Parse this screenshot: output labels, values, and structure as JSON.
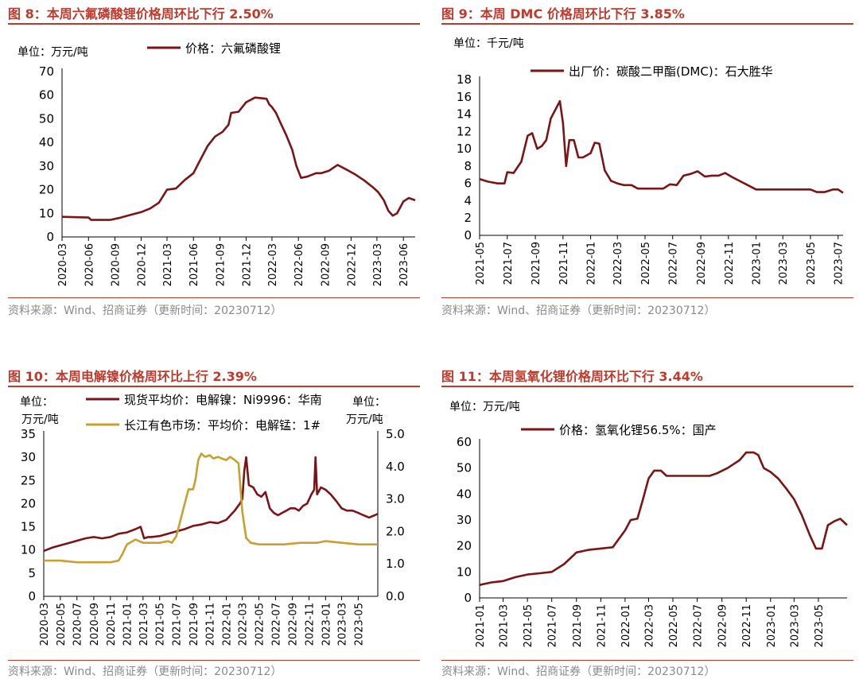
{
  "colors": {
    "title": "#c0392b",
    "series_dark": "#7b1416",
    "series_gold": "#c8a030",
    "source": "#8a8a8a"
  },
  "panels": [
    {
      "title": "图 8：本周六氟磷酸锂价格周环比下行 2.50%",
      "source": "资料来源：Wind、招商证券（更新时间：20230712）"
    },
    {
      "title": "图 9：本周 DMC 价格周环比下行 3.85%",
      "source": "资料来源：Wind、招商证券（更新时间：20230712）"
    },
    {
      "title": "图 10：本周电解镍价格周环比上行 2.39%",
      "source": "资料来源：Wind、招商证券（更新时间：20230712）"
    },
    {
      "title": "图 11：本周氢氧化锂价格周环比下行 3.44%",
      "source": "资料来源：Wind、招商证券（更新时间：20230712）"
    }
  ],
  "chart_data": [
    {
      "type": "line",
      "unit_label": "单位：万元/吨",
      "ylim": [
        0,
        70
      ],
      "y_ticks": [
        0,
        10,
        20,
        30,
        40,
        50,
        60,
        70
      ],
      "x_ticks": [
        "2020-03",
        "2020-06",
        "2020-09",
        "2020-12",
        "2021-03",
        "2021-06",
        "2021-09",
        "2021-12",
        "2022-03",
        "2022-06",
        "2022-09",
        "2022-12",
        "2023-03",
        "2023-06"
      ],
      "x_range": [
        "2020-03-01",
        "2023-07-12"
      ],
      "legend_position": "top",
      "series": [
        {
          "name": "价格：六氟磷酸锂",
          "color": "#7b1416",
          "x": [
            "2020-03-01",
            "2020-06-01",
            "2020-06-10",
            "2020-08-15",
            "2020-09-15",
            "2020-10-15",
            "2020-12-01",
            "2021-01-01",
            "2021-02-01",
            "2021-03-01",
            "2021-04-01",
            "2021-05-01",
            "2021-06-01",
            "2021-06-20",
            "2021-07-20",
            "2021-08-15",
            "2021-09-10",
            "2021-10-01",
            "2021-10-10",
            "2021-11-05",
            "2021-12-01",
            "2022-01-01",
            "2022-02-10",
            "2022-02-20",
            "2022-03-01",
            "2022-03-15",
            "2022-04-01",
            "2022-04-20",
            "2022-05-10",
            "2022-05-25",
            "2022-06-10",
            "2022-07-01",
            "2022-08-01",
            "2022-08-20",
            "2022-09-15",
            "2022-10-15",
            "2022-11-15",
            "2022-12-15",
            "2023-01-15",
            "2023-02-15",
            "2023-03-05",
            "2023-03-25",
            "2023-04-10",
            "2023-04-25",
            "2023-05-10",
            "2023-06-01",
            "2023-06-20",
            "2023-07-12"
          ],
          "values": [
            8.5,
            8.2,
            7.2,
            7.2,
            8.0,
            9.0,
            10.5,
            12.0,
            14.5,
            20.0,
            20.5,
            24.0,
            27.0,
            31.5,
            38.5,
            42.5,
            44.5,
            47.5,
            52.5,
            53.0,
            57.0,
            59.0,
            58.5,
            56.0,
            55.0,
            52.5,
            48.0,
            43.0,
            37.0,
            30.0,
            25.0,
            25.5,
            27.0,
            27.0,
            28.0,
            30.5,
            28.5,
            26.5,
            24.0,
            21.0,
            19.0,
            15.5,
            11.0,
            9.0,
            10.0,
            15.0,
            16.5,
            15.5
          ]
        }
      ]
    },
    {
      "type": "line",
      "unit_label": "单位：千元/吨",
      "ylim": [
        0,
        18
      ],
      "y_ticks": [
        0,
        2,
        4,
        6,
        8,
        10,
        12,
        14,
        16,
        18
      ],
      "x_ticks": [
        "2021-05",
        "2021-07",
        "2021-09",
        "2021-11",
        "2022-01",
        "2022-03",
        "2022-05",
        "2022-07",
        "2022-09",
        "2022-11",
        "2023-01",
        "2023-03",
        "2023-05",
        "2023-07"
      ],
      "x_range": [
        "2021-05-01",
        "2023-07-12"
      ],
      "legend_position": "top",
      "series": [
        {
          "name": "出厂价：碳酸二甲酯(DMC)：石大胜华",
          "color": "#7b1416",
          "x": [
            "2021-05-01",
            "2021-05-20",
            "2021-06-10",
            "2021-06-25",
            "2021-07-01",
            "2021-07-15",
            "2021-08-01",
            "2021-08-15",
            "2021-08-25",
            "2021-09-05",
            "2021-09-15",
            "2021-09-25",
            "2021-10-05",
            "2021-10-15",
            "2021-10-25",
            "2021-11-01",
            "2021-11-08",
            "2021-11-15",
            "2021-11-25",
            "2021-12-05",
            "2021-12-15",
            "2022-01-01",
            "2022-01-10",
            "2022-01-20",
            "2022-02-01",
            "2022-02-15",
            "2022-03-01",
            "2022-03-15",
            "2022-04-01",
            "2022-04-15",
            "2022-05-01",
            "2022-05-20",
            "2022-06-10",
            "2022-06-25",
            "2022-07-10",
            "2022-07-25",
            "2022-08-10",
            "2022-08-25",
            "2022-09-10",
            "2022-09-25",
            "2022-10-10",
            "2022-10-25",
            "2022-11-10",
            "2022-11-25",
            "2022-12-10",
            "2023-01-01",
            "2023-02-01",
            "2023-03-01",
            "2023-04-01",
            "2023-05-01",
            "2023-05-15",
            "2023-06-01",
            "2023-06-20",
            "2023-07-01",
            "2023-07-12"
          ],
          "values": [
            6.5,
            6.2,
            6.0,
            6.0,
            7.3,
            7.2,
            8.5,
            11.5,
            11.8,
            10.0,
            10.3,
            11.0,
            13.5,
            14.5,
            15.5,
            13.0,
            8.0,
            11.0,
            11.0,
            9.0,
            9.0,
            9.5,
            10.7,
            10.6,
            7.5,
            6.3,
            6.0,
            5.8,
            5.8,
            5.4,
            5.4,
            5.4,
            5.4,
            5.9,
            5.8,
            6.9,
            7.1,
            7.4,
            6.8,
            6.9,
            6.9,
            7.2,
            6.7,
            6.3,
            5.9,
            5.3,
            5.3,
            5.3,
            5.3,
            5.3,
            5.0,
            5.0,
            5.3,
            5.3,
            4.9
          ]
        }
      ]
    },
    {
      "type": "line",
      "unit_label_left": "单位：万元/吨",
      "unit_label_right": "单位：万元/吨",
      "ylim_left": [
        0,
        35
      ],
      "y_ticks_left": [
        0,
        5,
        10,
        15,
        20,
        25,
        30,
        35
      ],
      "ylim_right": [
        0,
        5
      ],
      "y_ticks_right": [
        "0.0",
        "1.0",
        "2.0",
        "3.0",
        "4.0",
        "5.0"
      ],
      "x_ticks": [
        "2020-03",
        "2020-05",
        "2020-07",
        "2020-09",
        "2020-11",
        "2021-01",
        "2021-03",
        "2021-05",
        "2021-07",
        "2021-09",
        "2021-11",
        "2022-01",
        "2022-03",
        "2022-05",
        "2022-07",
        "2022-09",
        "2022-11",
        "2023-01",
        "2023-03",
        "2023-05"
      ],
      "x_range": [
        "2020-03-01",
        "2023-07-12"
      ],
      "legend_position": "top",
      "series": [
        {
          "name": "现货平均价：电解镍：Ni9996：华南",
          "axis": "left",
          "color": "#7b1416",
          "x": [
            "2020-03-01",
            "2020-04-01",
            "2020-05-01",
            "2020-06-01",
            "2020-07-01",
            "2020-08-01",
            "2020-09-01",
            "2020-10-01",
            "2020-11-01",
            "2020-12-01",
            "2021-01-01",
            "2021-02-01",
            "2021-02-20",
            "2021-03-05",
            "2021-03-20",
            "2021-04-01",
            "2021-05-01",
            "2021-06-01",
            "2021-07-01",
            "2021-08-01",
            "2021-09-01",
            "2021-10-01",
            "2021-11-01",
            "2021-12-01",
            "2022-01-01",
            "2022-02-01",
            "2022-02-20",
            "2022-03-01",
            "2022-03-08",
            "2022-03-15",
            "2022-03-25",
            "2022-04-10",
            "2022-04-25",
            "2022-05-10",
            "2022-05-25",
            "2022-06-10",
            "2022-06-25",
            "2022-07-10",
            "2022-07-25",
            "2022-08-10",
            "2022-08-25",
            "2022-09-10",
            "2022-09-25",
            "2022-10-10",
            "2022-10-25",
            "2022-11-10",
            "2022-11-20",
            "2022-11-25",
            "2022-12-01",
            "2022-12-15",
            "2023-01-01",
            "2023-01-20",
            "2023-02-10",
            "2023-03-01",
            "2023-03-20",
            "2023-04-10",
            "2023-05-01",
            "2023-05-20",
            "2023-06-10",
            "2023-07-01",
            "2023-07-12"
          ],
          "values": [
            9.8,
            10.5,
            11.0,
            11.5,
            12.0,
            12.5,
            12.8,
            12.5,
            12.8,
            13.5,
            13.8,
            14.5,
            15.0,
            12.5,
            12.8,
            12.8,
            13.0,
            13.5,
            14.0,
            14.5,
            15.2,
            15.5,
            16.0,
            15.8,
            16.5,
            18.5,
            20.0,
            21.0,
            27.0,
            30.0,
            24.0,
            23.5,
            22.0,
            21.5,
            22.5,
            19.0,
            18.0,
            17.5,
            18.0,
            18.5,
            19.0,
            19.0,
            18.5,
            19.5,
            20.0,
            22.0,
            23.0,
            30.0,
            22.0,
            23.5,
            23.0,
            22.0,
            20.5,
            19.0,
            18.5,
            18.5,
            18.0,
            17.5,
            17.0,
            17.5,
            17.8
          ]
        },
        {
          "name": "长江有色市场：平均价：电解锰：1#",
          "axis": "right",
          "color": "#c8a030",
          "x": [
            "2020-03-01",
            "2020-05-01",
            "2020-07-01",
            "2020-09-01",
            "2020-11-01",
            "2020-12-01",
            "2020-12-15",
            "2021-01-01",
            "2021-02-01",
            "2021-03-01",
            "2021-04-01",
            "2021-05-01",
            "2021-06-01",
            "2021-06-15",
            "2021-07-01",
            "2021-07-15",
            "2021-08-01",
            "2021-08-15",
            "2021-09-01",
            "2021-09-10",
            "2021-09-20",
            "2021-10-01",
            "2021-10-15",
            "2021-11-01",
            "2021-11-15",
            "2021-12-01",
            "2021-12-15",
            "2022-01-01",
            "2022-01-15",
            "2022-02-01",
            "2022-02-15",
            "2022-03-01",
            "2022-03-15",
            "2022-04-01",
            "2022-05-01",
            "2022-06-01",
            "2022-08-01",
            "2022-10-01",
            "2022-12-01",
            "2023-01-01",
            "2023-03-01",
            "2023-05-01",
            "2023-07-12"
          ],
          "values": [
            1.1,
            1.1,
            1.05,
            1.05,
            1.05,
            1.1,
            1.3,
            1.6,
            1.75,
            1.65,
            1.65,
            1.65,
            1.7,
            1.65,
            1.85,
            2.3,
            2.85,
            3.3,
            3.3,
            3.6,
            4.2,
            4.4,
            4.3,
            4.35,
            4.25,
            4.3,
            4.25,
            4.2,
            4.3,
            4.2,
            4.1,
            2.6,
            1.8,
            1.65,
            1.6,
            1.6,
            1.6,
            1.65,
            1.65,
            1.7,
            1.65,
            1.6,
            1.6
          ]
        }
      ]
    },
    {
      "type": "line",
      "unit_label": "单位：万元/吨",
      "ylim": [
        0,
        60
      ],
      "y_ticks": [
        0,
        10,
        20,
        30,
        40,
        50,
        60
      ],
      "x_ticks": [
        "2021-01",
        "2021-03",
        "2021-05",
        "2021-07",
        "2021-09",
        "2021-11",
        "2022-01",
        "2022-03",
        "2022-05",
        "2022-07",
        "2022-09",
        "2022-11",
        "2023-01",
        "2023-03",
        "2023-05"
      ],
      "x_range": [
        "2021-01-01",
        "2023-07-12"
      ],
      "legend_position": "top",
      "series": [
        {
          "name": "价格：氢氧化锂56.5%：国产",
          "color": "#7b1416",
          "x": [
            "2021-01-01",
            "2021-02-01",
            "2021-03-01",
            "2021-04-01",
            "2021-05-01",
            "2021-06-01",
            "2021-07-01",
            "2021-08-01",
            "2021-09-01",
            "2021-10-01",
            "2021-11-01",
            "2021-12-01",
            "2022-01-01",
            "2022-01-15",
            "2022-02-01",
            "2022-02-15",
            "2022-03-01",
            "2022-03-15",
            "2022-04-01",
            "2022-04-15",
            "2022-05-01",
            "2022-06-01",
            "2022-07-01",
            "2022-08-01",
            "2022-08-20",
            "2022-09-15",
            "2022-10-15",
            "2022-11-01",
            "2022-11-20",
            "2022-12-01",
            "2022-12-15",
            "2023-01-01",
            "2023-01-20",
            "2023-02-10",
            "2023-03-01",
            "2023-03-20",
            "2023-04-10",
            "2023-04-25",
            "2023-05-10",
            "2023-05-25",
            "2023-06-10",
            "2023-06-25",
            "2023-07-12"
          ],
          "values": [
            5.0,
            6.0,
            6.5,
            8.0,
            9.0,
            9.5,
            10.0,
            13.0,
            17.5,
            18.5,
            19.0,
            19.5,
            26.0,
            30.0,
            30.5,
            38.0,
            46.0,
            49.0,
            49.0,
            47.0,
            47.0,
            47.0,
            47.0,
            47.0,
            48.0,
            50.0,
            53.0,
            56.0,
            56.0,
            55.0,
            50.0,
            48.5,
            46.0,
            42.0,
            38.0,
            32.0,
            24.0,
            19.0,
            19.0,
            28.0,
            29.5,
            30.5,
            28.0
          ]
        }
      ]
    }
  ]
}
